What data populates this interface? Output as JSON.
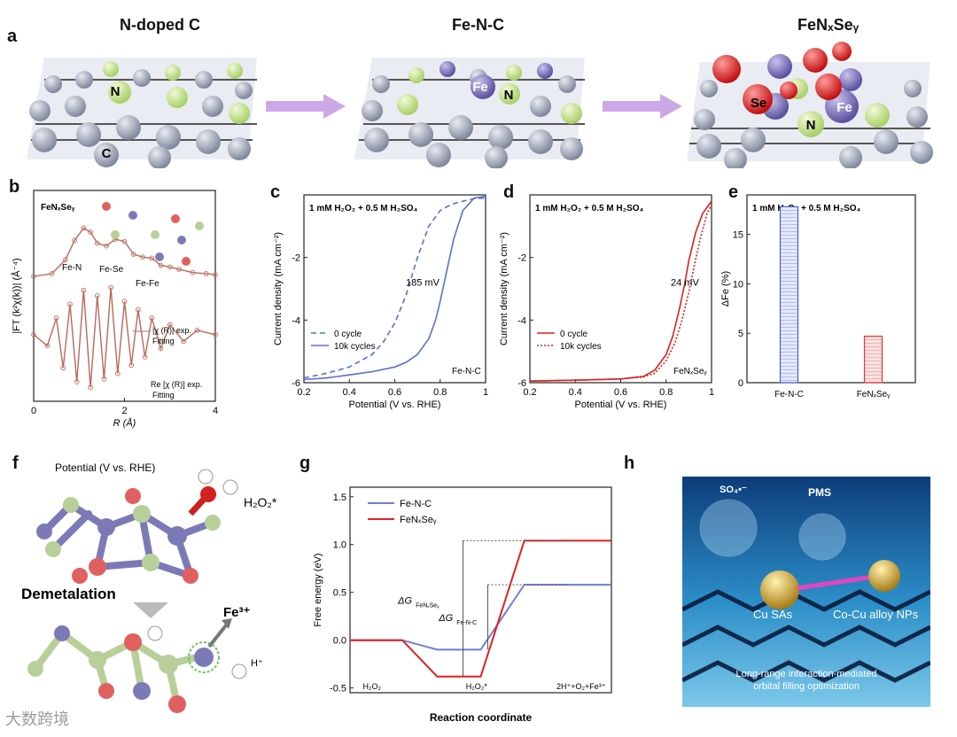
{
  "panel_letters": {
    "a": "a",
    "b": "b",
    "c": "c",
    "d": "d",
    "e": "e",
    "f": "f",
    "g": "g",
    "h": "h"
  },
  "panel_a": {
    "titles": [
      "N-doped C",
      "Fe-N-C",
      "FeNₓSeᵧ"
    ],
    "atom_labels": {
      "N": "N",
      "C": "C",
      "Fe": "Fe",
      "Se": "Se"
    },
    "colors": {
      "carbon": "#9aa3b5",
      "nitrogen": "#c4e38a",
      "iron": "#7b70b8",
      "selenium": "#e02020",
      "arrow": "#c9a6e6"
    }
  },
  "panel_b": {
    "sample": "FeNₓSeᵧ",
    "ylabel": "|FT (k²χ(k))| (Å⁻⁴)",
    "xlabel": "R (Å)",
    "peaks": [
      "Fe-N",
      "Fe-Se",
      "Fe-Fe"
    ],
    "legend": [
      "|χ (R)| exp.",
      "Fitting",
      "Re [χ (R)] exp.",
      "Fitting"
    ]
  },
  "panel_f": {
    "title": "Potential (V vs. RHE)",
    "adsorbate": "H₂O₂*",
    "step": "Demetalation",
    "ion": "Fe³⁺",
    "proton": "H⁺"
  },
  "panel_h": {
    "labels": [
      "SO₄•⁻",
      "PMS",
      "Cu SAs",
      "Co-Cu alloy NPs",
      "Long-range interaction-mediated",
      "orbital filling optimization"
    ]
  },
  "watermark": "大数跨境",
  "chart_data": [
    {
      "id": "b",
      "type": "line",
      "title": "",
      "xlabel": "R (Å)",
      "ylabel": "|FT (k²χ(k))| (Å⁻⁴)",
      "xlim": [
        0,
        4
      ],
      "xticks": [
        0,
        2,
        4
      ],
      "series": [
        {
          "name": "|χ (R)| exp.",
          "x": [
            0.0,
            0.4,
            0.7,
            0.9,
            1.1,
            1.25,
            1.4,
            1.6,
            1.8,
            2.0,
            2.2,
            2.4,
            2.6,
            2.8,
            3.0,
            3.2,
            3.5,
            3.8,
            4.0
          ],
          "y": [
            0.05,
            0.1,
            0.35,
            0.7,
            0.92,
            0.85,
            0.65,
            0.6,
            0.72,
            0.68,
            0.45,
            0.4,
            0.38,
            0.25,
            0.22,
            0.18,
            0.12,
            0.1,
            0.08
          ]
        },
        {
          "name": "Re [χ (R)] exp.",
          "x": [
            0.0,
            0.3,
            0.5,
            0.65,
            0.8,
            0.95,
            1.1,
            1.25,
            1.4,
            1.55,
            1.7,
            1.85,
            2.0,
            2.15,
            2.3,
            2.45,
            2.6,
            2.8,
            3.0,
            3.3,
            3.6,
            4.0
          ],
          "y": [
            0.0,
            -0.2,
            0.3,
            -0.6,
            0.55,
            -0.85,
            0.8,
            -0.95,
            0.7,
            -0.8,
            0.85,
            -0.7,
            0.6,
            -0.55,
            0.45,
            -0.4,
            0.3,
            -0.25,
            0.18,
            -0.12,
            0.08,
            0.0
          ]
        }
      ]
    },
    {
      "id": "c",
      "type": "line",
      "title": "1 mM H₂O₂ + 0.5 M H₂SO₄",
      "xlabel": "Potential (V vs. RHE)",
      "ylabel": "Current density (mA cm⁻²)",
      "xlim": [
        0.2,
        1.0
      ],
      "ylim": [
        -6,
        0
      ],
      "xticks": [
        0.2,
        0.4,
        0.6,
        0.8,
        1.0
      ],
      "yticks": [
        -6,
        -4,
        -2
      ],
      "annotation": "185 mV",
      "sample": "Fe-N-C",
      "series": [
        {
          "name": "0 cycle",
          "style": "dashed",
          "x": [
            0.2,
            0.3,
            0.4,
            0.5,
            0.55,
            0.6,
            0.65,
            0.7,
            0.75,
            0.8,
            0.85,
            0.9,
            0.95,
            1.0
          ],
          "y": [
            -5.85,
            -5.7,
            -5.5,
            -5.1,
            -4.7,
            -4.1,
            -3.2,
            -2.0,
            -1.0,
            -0.5,
            -0.3,
            -0.2,
            -0.12,
            -0.1
          ]
        },
        {
          "name": "10k cycles",
          "style": "solid",
          "x": [
            0.2,
            0.3,
            0.4,
            0.5,
            0.6,
            0.65,
            0.7,
            0.75,
            0.78,
            0.8,
            0.83,
            0.86,
            0.9,
            0.95,
            1.0
          ],
          "y": [
            -5.9,
            -5.85,
            -5.75,
            -5.65,
            -5.5,
            -5.35,
            -5.1,
            -4.6,
            -4.0,
            -3.4,
            -2.4,
            -1.4,
            -0.5,
            -0.1,
            -0.05
          ]
        }
      ]
    },
    {
      "id": "d",
      "type": "line",
      "title": "1 mM H₂O₂ + 0.5 M H₂SO₄",
      "xlabel": "Potential (V vs. RHE)",
      "ylabel": "Current density (mA cm⁻²)",
      "xlim": [
        0.2,
        1.0
      ],
      "ylim": [
        -6,
        0
      ],
      "xticks": [
        0.2,
        0.4,
        0.6,
        0.8,
        1.0
      ],
      "yticks": [
        -6,
        -4,
        -2
      ],
      "annotation": "24 mV",
      "sample": "FeNₓSeᵧ",
      "series": [
        {
          "name": "0 cycle",
          "style": "solid",
          "x": [
            0.2,
            0.4,
            0.6,
            0.7,
            0.75,
            0.8,
            0.83,
            0.86,
            0.88,
            0.9,
            0.93,
            0.96,
            1.0
          ],
          "y": [
            -5.95,
            -5.92,
            -5.88,
            -5.8,
            -5.6,
            -5.1,
            -4.5,
            -3.6,
            -2.9,
            -2.1,
            -1.2,
            -0.6,
            -0.2
          ]
        },
        {
          "name": "10k cycles",
          "style": "dotted",
          "x": [
            0.2,
            0.4,
            0.6,
            0.7,
            0.75,
            0.8,
            0.84,
            0.87,
            0.9,
            0.92,
            0.95,
            0.98,
            1.0
          ],
          "y": [
            -5.95,
            -5.92,
            -5.88,
            -5.82,
            -5.7,
            -5.3,
            -4.7,
            -4.0,
            -3.1,
            -2.4,
            -1.4,
            -0.6,
            -0.3
          ]
        }
      ]
    },
    {
      "id": "e",
      "type": "bar",
      "title": "1 mM H₂O₂ + 0.5 M H₂SO₄",
      "ylabel": "ΔFe (%)",
      "ylim": [
        0,
        19
      ],
      "yticks": [
        0,
        5,
        10,
        15
      ],
      "categories": [
        "Fe-N-C",
        "FeNₓSeᵧ"
      ],
      "values": [
        17.8,
        4.7
      ],
      "colors": [
        "#4a5fc1",
        "#e03a3a"
      ]
    },
    {
      "id": "g",
      "type": "line",
      "title": "",
      "xlabel": "Reaction coordinate",
      "ylabel": "Free energy (eV)",
      "ylim": [
        -0.55,
        1.6
      ],
      "yticks": [
        -0.5,
        0.0,
        0.5,
        1.0,
        1.5
      ],
      "states": [
        "H₂O₂",
        "H₂O₂*",
        "2H⁺+O₂+Fe³⁺"
      ],
      "series": [
        {
          "name": "Fe-N-C",
          "color": "#6a7fd6",
          "values": [
            0.0,
            -0.1,
            0.58
          ]
        },
        {
          "name": "FeNₓSeᵧ",
          "color": "#e02020",
          "values": [
            0.0,
            -0.38,
            1.04
          ]
        }
      ],
      "annotations": [
        "ΔG",
        "FeNₓSeᵧ",
        "ΔG",
        "Fe-N-C"
      ]
    }
  ]
}
